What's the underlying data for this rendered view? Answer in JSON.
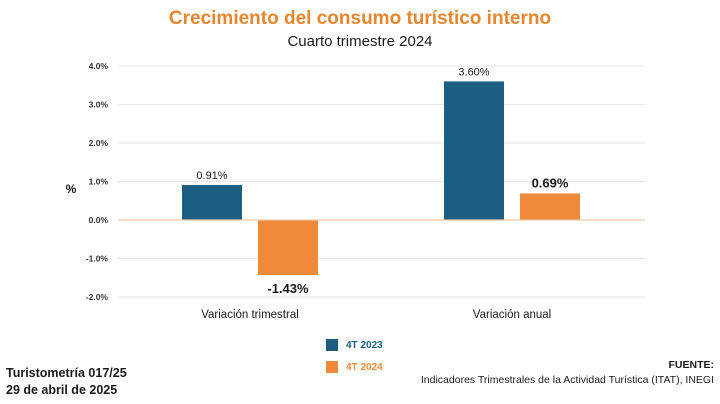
{
  "chart_data": {
    "type": "bar",
    "title": "Crecimiento del consumo turístico interno",
    "subtitle": "Cuarto trimestre 2024",
    "ylabel": "%",
    "xlabel": "",
    "ylim": [
      -2.0,
      4.0
    ],
    "yticks": [
      -2.0,
      -1.0,
      0.0,
      1.0,
      2.0,
      3.0,
      4.0
    ],
    "ytick_labels": [
      "-2.0%",
      "-1.0%",
      "0.0%",
      "1.0%",
      "2.0%",
      "3.0%",
      "4.0%"
    ],
    "categories": [
      "Variación trimestral",
      "Variación anual"
    ],
    "series": [
      {
        "name": "4T 2023",
        "color": "#1b5e82",
        "values": [
          0.91,
          3.6
        ],
        "labels": [
          "0.91%",
          "3.60%"
        ]
      },
      {
        "name": "4T 2024",
        "color": "#ef8a3a",
        "values": [
          -1.43,
          0.69
        ],
        "labels": [
          "-1.43%",
          "0.69%"
        ]
      }
    ],
    "legend_position": "bottom-center"
  },
  "footer": {
    "report_id": "Turistometría 017/25",
    "date": "29 de abril de 2025",
    "source_label": "FUENTE:",
    "source_text": "Indicadores Trimestrales de la Actividad Turística (ITAT), INEGI"
  }
}
